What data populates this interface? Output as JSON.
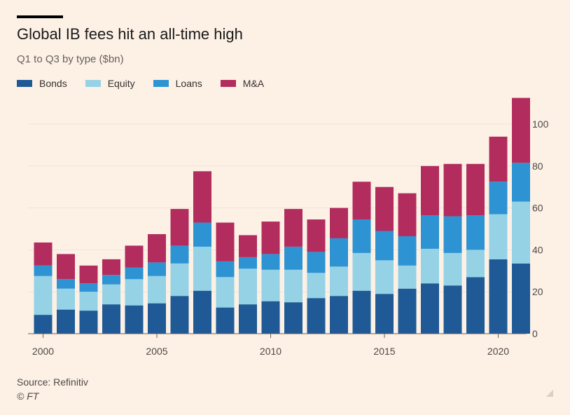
{
  "title": "Global IB fees hit an all-time high",
  "subtitle": "Q1 to Q3 by type ($bn)",
  "source": "Source: Refinitiv",
  "copyright": "© FT",
  "chart_data": {
    "type": "bar",
    "stacked": true,
    "categories": [
      2000,
      2001,
      2002,
      2003,
      2004,
      2005,
      2006,
      2007,
      2008,
      2009,
      2010,
      2011,
      2012,
      2013,
      2014,
      2015,
      2016,
      2017,
      2018,
      2019,
      2020,
      2021
    ],
    "x_ticks": [
      "2000",
      "2005",
      "2010",
      "2015",
      "2020"
    ],
    "y_ticks": [
      "0",
      "20",
      "40",
      "60",
      "80",
      "100"
    ],
    "ylim": [
      0,
      113
    ],
    "grid": true,
    "legend_position": "top-left",
    "series": [
      {
        "name": "Bonds",
        "color": "#1f5a96",
        "values": [
          9,
          11.5,
          11,
          14,
          13.5,
          14.5,
          18,
          20.5,
          12.5,
          14,
          15.5,
          15,
          17,
          18,
          20.5,
          19,
          21.5,
          24,
          23,
          27,
          35.5,
          33.5
        ]
      },
      {
        "name": "Equity",
        "color": "#95d2e6",
        "values": [
          18.5,
          10,
          9,
          9.5,
          12.5,
          13,
          15.5,
          21,
          14.5,
          17,
          15,
          15.5,
          12,
          14,
          18,
          16,
          11,
          16.5,
          15.5,
          13,
          21.5,
          29.5
        ]
      },
      {
        "name": "Loans",
        "color": "#2d93d3",
        "values": [
          5,
          4.5,
          4,
          4.5,
          5.5,
          6.5,
          8.5,
          11.5,
          7.5,
          5.5,
          7.5,
          11,
          10,
          13.5,
          16,
          14,
          14,
          16,
          17.5,
          16.5,
          15.5,
          18.5
        ]
      },
      {
        "name": "M&A",
        "color": "#b22d5e",
        "values": [
          11,
          12,
          8.5,
          7.5,
          10.5,
          13.5,
          17.5,
          24.5,
          18.5,
          10.5,
          15.5,
          18,
          15.5,
          14.5,
          18,
          21,
          20.5,
          23.5,
          25,
          24.5,
          21.5,
          31
        ]
      }
    ]
  }
}
